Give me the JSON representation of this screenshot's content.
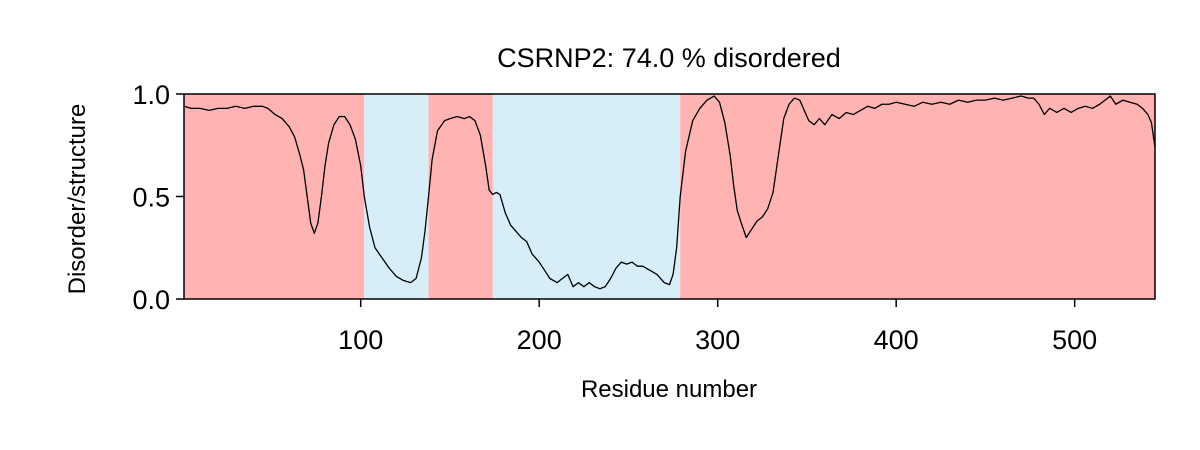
{
  "chart_data": {
    "type": "line",
    "title": "CSRNP2: 74.0 % disordered",
    "xlabel": "Residue number",
    "ylabel": "Disorder/structure",
    "xlim": [
      1,
      545
    ],
    "ylim": [
      0.0,
      1.0
    ],
    "xticks": [
      100,
      200,
      300,
      400,
      500
    ],
    "yticks": [
      0.0,
      0.5,
      1.0
    ],
    "xtick_labels": [
      "100",
      "200",
      "300",
      "400",
      "500"
    ],
    "ytick_labels": [
      "0.0",
      "0.5",
      "1.0"
    ],
    "grid": false,
    "regions": [
      {
        "start": 1,
        "end": 102,
        "kind": "disordered",
        "color": "#ffb3b3"
      },
      {
        "start": 102,
        "end": 138,
        "kind": "structured",
        "color": "#d7eef8"
      },
      {
        "start": 138,
        "end": 174,
        "kind": "disordered",
        "color": "#ffb3b3"
      },
      {
        "start": 174,
        "end": 279,
        "kind": "structured",
        "color": "#d7eef8"
      },
      {
        "start": 279,
        "end": 545,
        "kind": "disordered",
        "color": "#ffb3b3"
      }
    ],
    "series": [
      {
        "color": "#000000",
        "points": [
          [
            1,
            0.94
          ],
          [
            5,
            0.93
          ],
          [
            10,
            0.93
          ],
          [
            15,
            0.92
          ],
          [
            20,
            0.93
          ],
          [
            25,
            0.93
          ],
          [
            30,
            0.94
          ],
          [
            35,
            0.93
          ],
          [
            40,
            0.94
          ],
          [
            45,
            0.94
          ],
          [
            48,
            0.93
          ],
          [
            52,
            0.9
          ],
          [
            56,
            0.88
          ],
          [
            60,
            0.84
          ],
          [
            63,
            0.79
          ],
          [
            66,
            0.7
          ],
          [
            68,
            0.63
          ],
          [
            70,
            0.5
          ],
          [
            72,
            0.37
          ],
          [
            74,
            0.32
          ],
          [
            76,
            0.37
          ],
          [
            78,
            0.5
          ],
          [
            80,
            0.65
          ],
          [
            82,
            0.76
          ],
          [
            85,
            0.85
          ],
          [
            88,
            0.89
          ],
          [
            91,
            0.89
          ],
          [
            94,
            0.85
          ],
          [
            97,
            0.78
          ],
          [
            100,
            0.65
          ],
          [
            102,
            0.5
          ],
          [
            105,
            0.35
          ],
          [
            108,
            0.25
          ],
          [
            112,
            0.2
          ],
          [
            116,
            0.15
          ],
          [
            120,
            0.11
          ],
          [
            124,
            0.09
          ],
          [
            128,
            0.08
          ],
          [
            131,
            0.1
          ],
          [
            134,
            0.2
          ],
          [
            136,
            0.33
          ],
          [
            138,
            0.5
          ],
          [
            140,
            0.68
          ],
          [
            143,
            0.82
          ],
          [
            147,
            0.87
          ],
          [
            150,
            0.88
          ],
          [
            154,
            0.89
          ],
          [
            158,
            0.88
          ],
          [
            161,
            0.89
          ],
          [
            164,
            0.87
          ],
          [
            167,
            0.8
          ],
          [
            170,
            0.65
          ],
          [
            172,
            0.53
          ],
          [
            174,
            0.51
          ],
          [
            176,
            0.52
          ],
          [
            178,
            0.51
          ],
          [
            181,
            0.42
          ],
          [
            184,
            0.36
          ],
          [
            187,
            0.33
          ],
          [
            190,
            0.3
          ],
          [
            193,
            0.28
          ],
          [
            196,
            0.22
          ],
          [
            200,
            0.18
          ],
          [
            203,
            0.14
          ],
          [
            206,
            0.1
          ],
          [
            210,
            0.08
          ],
          [
            213,
            0.1
          ],
          [
            216,
            0.12
          ],
          [
            219,
            0.06
          ],
          [
            222,
            0.08
          ],
          [
            225,
            0.06
          ],
          [
            228,
            0.08
          ],
          [
            231,
            0.06
          ],
          [
            234,
            0.05
          ],
          [
            237,
            0.06
          ],
          [
            240,
            0.1
          ],
          [
            243,
            0.15
          ],
          [
            246,
            0.18
          ],
          [
            249,
            0.17
          ],
          [
            252,
            0.18
          ],
          [
            255,
            0.16
          ],
          [
            258,
            0.16
          ],
          [
            262,
            0.14
          ],
          [
            266,
            0.12
          ],
          [
            270,
            0.08
          ],
          [
            273,
            0.07
          ],
          [
            275,
            0.12
          ],
          [
            277,
            0.25
          ],
          [
            279,
            0.5
          ],
          [
            282,
            0.72
          ],
          [
            286,
            0.87
          ],
          [
            290,
            0.93
          ],
          [
            294,
            0.97
          ],
          [
            298,
            0.99
          ],
          [
            301,
            0.96
          ],
          [
            304,
            0.86
          ],
          [
            307,
            0.7
          ],
          [
            309,
            0.55
          ],
          [
            311,
            0.43
          ],
          [
            314,
            0.35
          ],
          [
            316,
            0.3
          ],
          [
            319,
            0.34
          ],
          [
            322,
            0.38
          ],
          [
            325,
            0.4
          ],
          [
            328,
            0.44
          ],
          [
            331,
            0.52
          ],
          [
            334,
            0.7
          ],
          [
            337,
            0.88
          ],
          [
            340,
            0.95
          ],
          [
            343,
            0.98
          ],
          [
            346,
            0.97
          ],
          [
            348,
            0.93
          ],
          [
            351,
            0.87
          ],
          [
            354,
            0.85
          ],
          [
            357,
            0.88
          ],
          [
            360,
            0.85
          ],
          [
            364,
            0.9
          ],
          [
            368,
            0.88
          ],
          [
            372,
            0.91
          ],
          [
            376,
            0.9
          ],
          [
            380,
            0.92
          ],
          [
            384,
            0.94
          ],
          [
            388,
            0.93
          ],
          [
            392,
            0.95
          ],
          [
            396,
            0.95
          ],
          [
            400,
            0.96
          ],
          [
            405,
            0.95
          ],
          [
            410,
            0.94
          ],
          [
            415,
            0.96
          ],
          [
            420,
            0.95
          ],
          [
            425,
            0.96
          ],
          [
            430,
            0.95
          ],
          [
            435,
            0.97
          ],
          [
            440,
            0.96
          ],
          [
            445,
            0.97
          ],
          [
            450,
            0.97
          ],
          [
            455,
            0.98
          ],
          [
            460,
            0.97
          ],
          [
            465,
            0.98
          ],
          [
            470,
            0.99
          ],
          [
            474,
            0.98
          ],
          [
            477,
            0.98
          ],
          [
            480,
            0.95
          ],
          [
            483,
            0.9
          ],
          [
            486,
            0.93
          ],
          [
            490,
            0.91
          ],
          [
            494,
            0.93
          ],
          [
            498,
            0.91
          ],
          [
            502,
            0.93
          ],
          [
            506,
            0.94
          ],
          [
            510,
            0.93
          ],
          [
            514,
            0.95
          ],
          [
            517,
            0.97
          ],
          [
            520,
            0.99
          ],
          [
            523,
            0.95
          ],
          [
            527,
            0.97
          ],
          [
            531,
            0.96
          ],
          [
            535,
            0.95
          ],
          [
            538,
            0.93
          ],
          [
            541,
            0.9
          ],
          [
            543,
            0.86
          ],
          [
            545,
            0.74
          ]
        ]
      }
    ]
  }
}
